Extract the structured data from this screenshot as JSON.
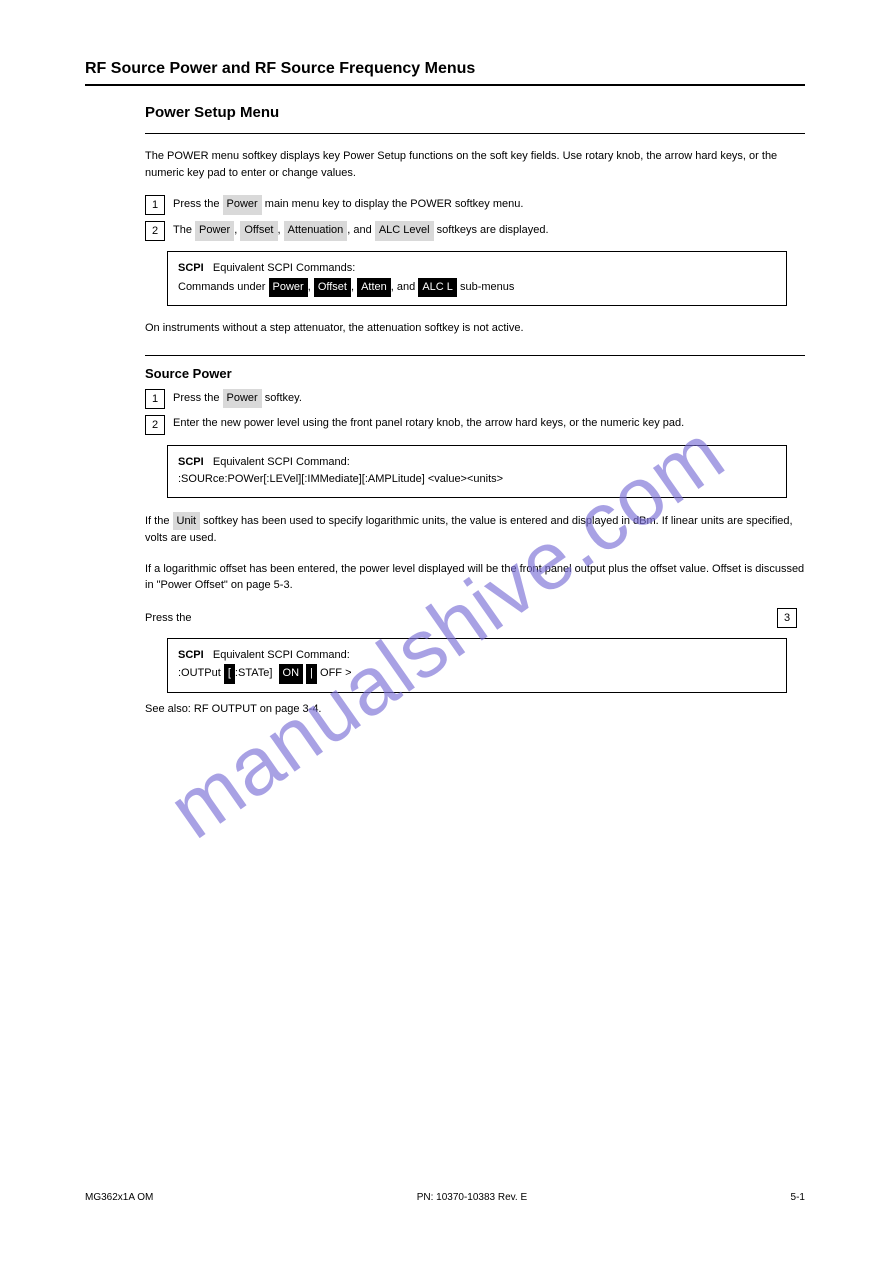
{
  "heading": "RF Source Power and RF Source Frequency Menus",
  "subtitle1": "Power Setup Menu",
  "para1": "The POWER menu softkey displays key Power Setup functions on the soft key fields. Use rotary knob, the arrow hard keys, or the numeric key pad to enter or change values.",
  "step1_num": "1",
  "step1_text_a": "Press the",
  "step1_key": "Power",
  "step1_text_b": "main menu key to display the POWER softkey menu.",
  "step2_num": "2",
  "step2_a": "The",
  "step2_key1": "Power",
  "step2_b": ",",
  "step2_key2": "Offset",
  "step2_c": ",",
  "step2_key3": "Attenuation",
  "step2_d": ", and",
  "step2_key4": "ALC Level",
  "step2_e": "softkeys are displayed.",
  "scpi1_label": "SCPI",
  "scpi1_a": "Equivalent SCPI Commands:",
  "scpi1_b": "Commands under",
  "scpi1_c1": "Power",
  "scpi1_d": ",",
  "scpi1_c2": "Offset",
  "scpi1_e": ",",
  "scpi1_c3": "Atten",
  "scpi1_f": ", and",
  "scpi1_c4": "ALC L",
  "scpi1_g": "sub-menus",
  "note": "On instruments without a step attenuator, the attenuation softkey is not active.",
  "subsection_title": "Source Power",
  "step_a_num": "1",
  "step_a_a": "Press the",
  "step_a_key": "Power",
  "step_a_b": "softkey.",
  "step_b_num": "2",
  "step_b": "Enter the new power level using the front panel rotary knob, the arrow hard keys, or the numeric key pad.",
  "scpi2_label": "SCPI",
  "scpi2_a": "Equivalent SCPI Command:",
  "scpi2_b": ":SOURce:POWer[:LEVel][:IMMediate][:AMPLitude] <value><units>",
  "para2_a": "If the",
  "para2_key": "Unit",
  "para2_b": "softkey has been used to specify logarithmic units, the value is entered and displayed in dBm. If linear units are specified, volts are used.",
  "para3_a": "If a logarithmic offset has been entered, the power level displayed will be the front panel output plus the offset value. Offset is discussed in \"Power Offset\" on page 5-3.",
  "step3_num": "3",
  "step3_pre": "Press the",
  "scpi3_label": "SCPI",
  "scpi3_a": "Equivalent SCPI Command:",
  "scpi3_b": ":OUTPut",
  "scpi3_c": "[",
  "scpi3_d": ":STATe]",
  "scpi3_e": "<",
  "scpi3_f": "ON",
  "scpi3_g": "|",
  "scpi3_h": "OFF",
  "scpi3_i": ">",
  "see_also": "See also: RF OUTPUT on page 3-4.",
  "footer_left": "MG362x1A OM",
  "footer_center": "PN: 10370-10383 Rev. E",
  "footer_right": "5-1",
  "watermark": "manualshive.com"
}
